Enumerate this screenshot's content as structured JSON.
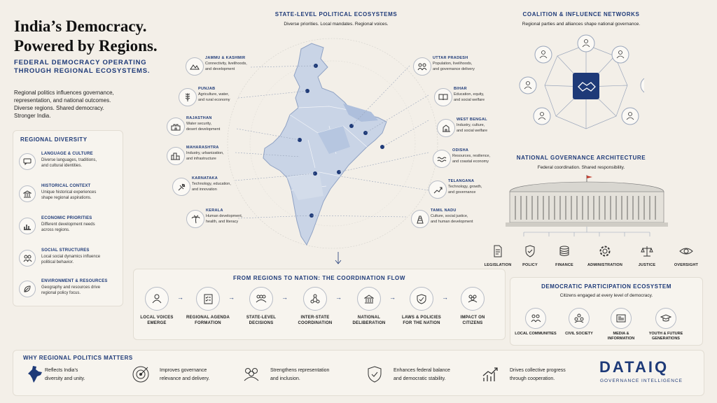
{
  "header": {
    "title_line1": "India’s Democracy.",
    "title_line2": "Powered by Regions.",
    "subtitle_line1": "FEDERAL DEMOCRACY OPERATING",
    "subtitle_line2": "THROUGH REGIONAL ECOSYSTEMS.",
    "intro_lines": [
      "Regional politics influences governance,",
      "representation, and national outcomes.",
      "Diverse regions. Shared democracy.",
      "Stronger India."
    ]
  },
  "regional_diversity": {
    "title": "REGIONAL DIVERSITY",
    "items": [
      {
        "title": "LANGUAGE & CULTURE",
        "desc1": "Diverse languages, traditions,",
        "desc2": "and cultural identities.",
        "icon": "speech-bubble-icon"
      },
      {
        "title": "HISTORICAL CONTEXT",
        "desc1": "Unique historical experiences",
        "desc2": "shape regional aspirations.",
        "icon": "temple-icon"
      },
      {
        "title": "ECONOMIC PRIORITIES",
        "desc1": "Different development needs",
        "desc2": "across regions.",
        "icon": "bar-chart-icon"
      },
      {
        "title": "SOCIAL STRUCTURES",
        "desc1": "Local social dynamics influence",
        "desc2": "political behavior.",
        "icon": "people-icon"
      },
      {
        "title": "ENVIRONMENT & RESOURCES",
        "desc1": "Geography and resources drive",
        "desc2": "regional policy focus.",
        "icon": "leaf-icon"
      }
    ]
  },
  "state_ecosystems": {
    "title": "STATE-LEVEL POLITICAL ECOSYSTEMS",
    "subtitle": "Diverse priorities. Local mandates. Regional voices.",
    "left_states": [
      {
        "name": "JAMMU & KASHMIR",
        "d1": "Connectivity, livelihoods,",
        "d2": "and development",
        "icon": "mountain-icon"
      },
      {
        "name": "PUNJAB",
        "d1": "Agriculture, water,",
        "d2": "and rural economy",
        "icon": "wheat-icon"
      },
      {
        "name": "RAJASTHAN",
        "d1": "Water security,",
        "d2": "desert development",
        "icon": "fort-icon"
      },
      {
        "name": "MAHARASHTRA",
        "d1": "Industry, urbanization,",
        "d2": "and infrastructure",
        "icon": "city-icon"
      },
      {
        "name": "KARNATAKA",
        "d1": "Technology, education,",
        "d2": "and innovation",
        "icon": "satellite-icon"
      },
      {
        "name": "KERALA",
        "d1": "Human development,",
        "d2": "health, and literacy",
        "icon": "palm-icon"
      }
    ],
    "right_states": [
      {
        "name": "UTTAR PRADESH",
        "d1": "Population, livelihoods,",
        "d2": "and governance delivery",
        "icon": "people-group-icon"
      },
      {
        "name": "BIHAR",
        "d1": "Education, equity,",
        "d2": "and social welfare",
        "icon": "book-icon"
      },
      {
        "name": "WEST BENGAL",
        "d1": "Industry, culture,",
        "d2": "and social welfare",
        "icon": "building-icon"
      },
      {
        "name": "ODISHA",
        "d1": "Resources, resilience,",
        "d2": "and coastal economy",
        "icon": "wave-icon"
      },
      {
        "name": "TELANGANA",
        "d1": "Technology, growth,",
        "d2": "and governance",
        "icon": "chart-up-icon"
      },
      {
        "name": "TAMIL NADU",
        "d1": "Culture, social justice,",
        "d2": "and human development",
        "icon": "gopuram-icon"
      }
    ]
  },
  "coalition": {
    "title": "COALITION & INFLUENCE NETWORKS",
    "subtitle": "Regional parties and alliances shape national governance."
  },
  "governance": {
    "title": "NATIONAL GOVERNANCE ARCHITECTURE",
    "subtitle": "Federal coordination. Shared responsibility.",
    "items": [
      {
        "label": "LEGISLATION",
        "icon": "document-icon"
      },
      {
        "label": "POLICY",
        "icon": "shield-check-icon"
      },
      {
        "label": "FINANCE",
        "icon": "coins-icon"
      },
      {
        "label": "ADMINISTRATION",
        "icon": "gear-icon"
      },
      {
        "label": "JUSTICE",
        "icon": "scales-icon"
      },
      {
        "label": "OVERSIGHT",
        "icon": "eye-icon"
      }
    ]
  },
  "flow": {
    "title": "FROM REGIONS TO NATION: THE COORDINATION FLOW",
    "steps": [
      {
        "l1": "LOCAL VOICES",
        "l2": "EMERGE",
        "icon": "person-icon"
      },
      {
        "l1": "REGIONAL AGENDA",
        "l2": "FORMATION",
        "icon": "checklist-icon"
      },
      {
        "l1": "STATE-LEVEL",
        "l2": "DECISIONS",
        "icon": "group-icon"
      },
      {
        "l1": "INTER-STATE",
        "l2": "COORDINATION",
        "icon": "network-icon"
      },
      {
        "l1": "NATIONAL",
        "l2": "DELIBERATION",
        "icon": "parliament-icon"
      },
      {
        "l1": "LAWS & POLICIES",
        "l2": "FOR THE NATION",
        "icon": "shield-icon"
      },
      {
        "l1": "IMPACT ON",
        "l2": "CITIZENS",
        "icon": "citizens-icon"
      }
    ]
  },
  "participation": {
    "title": "DEMOCRATIC PARTICIPATION ECOSYSTEM",
    "subtitle": "Citizens engaged at every level of democracy.",
    "items": [
      {
        "l1": "LOCAL COMMUNITIES",
        "l2": "",
        "icon": "community-icon"
      },
      {
        "l1": "CIVIL SOCIETY",
        "l2": "",
        "icon": "civil-society-icon"
      },
      {
        "l1": "MEDIA &",
        "l2": "INFORMATION",
        "icon": "newspaper-icon"
      },
      {
        "l1": "YOUTH & FUTURE",
        "l2": "GENERATIONS",
        "icon": "graduation-cap-icon"
      }
    ]
  },
  "why": {
    "title": "WHY REGIONAL POLITICS MATTERS",
    "items": [
      {
        "d1": "Reflects India’s",
        "d2": "diversity and unity.",
        "icon": "india-map-icon"
      },
      {
        "d1": "Improves governance",
        "d2": "relevance and delivery.",
        "icon": "target-icon"
      },
      {
        "d1": "Strengthens representation",
        "d2": "and inclusion.",
        "icon": "people-icon"
      },
      {
        "d1": "Enhances federal balance",
        "d2": "and democratic stability.",
        "icon": "shield-check-icon"
      },
      {
        "d1": "Drives collective progress",
        "d2": "through cooperation.",
        "icon": "growth-icon"
      }
    ]
  },
  "brand": {
    "name": "DATAIQ",
    "tagline": "GOVERNANCE INTELLIGENCE"
  },
  "colors": {
    "navy": "#1e3a78",
    "background": "#f3efe8",
    "map_fill": "#c9d4e6"
  }
}
